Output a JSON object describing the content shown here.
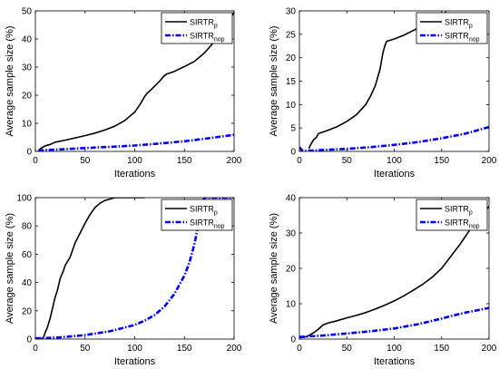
{
  "chart_data": [
    {
      "type": "line",
      "xlabel": "Iterations",
      "ylabel": "Average sample size (%)",
      "xlim": [
        0,
        200
      ],
      "ylim": [
        0,
        50
      ],
      "xticks": [
        0,
        50,
        100,
        150,
        200
      ],
      "yticks": [
        0,
        10,
        20,
        30,
        40,
        50
      ],
      "grid": false,
      "legend": "top-right",
      "series": [
        {
          "name": "SIRTR",
          "sub": "p",
          "color": "#000000",
          "style": "solid",
          "x": [
            3,
            5,
            8,
            10,
            15,
            20,
            30,
            40,
            50,
            60,
            70,
            80,
            90,
            100,
            105,
            110,
            112,
            118,
            125,
            130,
            132,
            140,
            150,
            160,
            170,
            180,
            190,
            200
          ],
          "y": [
            0,
            1,
            1.6,
            2,
            2.5,
            3.3,
            4,
            4.8,
            5.6,
            6.5,
            7.6,
            9,
            11,
            14,
            16.5,
            19.5,
            20.5,
            22.5,
            25,
            27,
            27.5,
            28.5,
            30.2,
            32,
            35,
            39,
            44,
            49.5
          ]
        },
        {
          "name": "SIRTR",
          "sub": "nop",
          "color": "#0000ff",
          "style": "dashdot",
          "x": [
            3,
            10,
            25,
            50,
            75,
            100,
            125,
            150,
            175,
            200
          ],
          "y": [
            0.3,
            0.5,
            0.7,
            1.2,
            1.6,
            2.1,
            2.8,
            3.6,
            4.7,
            5.9
          ]
        }
      ]
    },
    {
      "type": "line",
      "xlabel": "Iterations",
      "ylabel": "Average sample size (%)",
      "xlim": [
        0,
        200
      ],
      "ylim": [
        0,
        30
      ],
      "xticks": [
        0,
        50,
        100,
        150,
        200
      ],
      "yticks": [
        0,
        5,
        10,
        15,
        20,
        25,
        30
      ],
      "grid": false,
      "legend": "top-right",
      "series": [
        {
          "name": "SIRTR",
          "sub": "p",
          "color": "#000000",
          "style": "solid",
          "x": [
            10,
            12,
            15,
            18,
            20,
            30,
            40,
            50,
            60,
            70,
            75,
            80,
            85,
            88,
            90,
            92,
            95,
            100,
            110,
            120,
            130,
            140,
            150,
            155
          ],
          "y": [
            0.6,
            1.5,
            2.5,
            3,
            3.8,
            4.5,
            5.3,
            6.4,
            7.8,
            10,
            11.8,
            14,
            17.5,
            21,
            22.5,
            23.5,
            23.7,
            24,
            24.8,
            25.8,
            26.8,
            27.8,
            29,
            29.8
          ]
        },
        {
          "name": "SIRTR",
          "sub": "nop",
          "color": "#0000ff",
          "style": "dashdot",
          "x": [
            0,
            3,
            6,
            10,
            25,
            50,
            75,
            100,
            125,
            150,
            175,
            200
          ],
          "y": [
            0.9,
            0.2,
            0.1,
            0.15,
            0.3,
            0.55,
            0.9,
            1.4,
            2.0,
            2.8,
            3.8,
            5.2
          ]
        }
      ]
    },
    {
      "type": "line",
      "xlabel": "Iterations",
      "ylabel": "Average sample size (%)",
      "xlim": [
        0,
        200
      ],
      "ylim": [
        0,
        100
      ],
      "xticks": [
        0,
        50,
        100,
        150,
        200
      ],
      "yticks": [
        0,
        20,
        40,
        60,
        80,
        100
      ],
      "grid": false,
      "legend": "top-right",
      "series": [
        {
          "name": "SIRTR",
          "sub": "p",
          "color": "#000000",
          "style": "solid",
          "x": [
            5,
            8,
            10,
            12,
            15,
            18,
            20,
            22,
            25,
            28,
            30,
            35,
            40,
            45,
            50,
            55,
            60,
            65,
            70,
            75,
            80,
            90,
            100,
            110
          ],
          "y": [
            0,
            1,
            5,
            8,
            15,
            24,
            30,
            34,
            43,
            48,
            52,
            58,
            68,
            75,
            82,
            88,
            93,
            96,
            98,
            99,
            100,
            100,
            100,
            100
          ]
        },
        {
          "name": "SIRTR",
          "sub": "nop",
          "color": "#0000ff",
          "style": "dashdot",
          "x": [
            0,
            25,
            50,
            75,
            100,
            110,
            120,
            130,
            140,
            150,
            155,
            160,
            165,
            168,
            170,
            175,
            185,
            200
          ],
          "y": [
            0.5,
            1.2,
            2.8,
            5.5,
            10,
            13,
            17,
            23,
            32,
            45,
            54,
            67,
            84,
            95,
            100,
            100,
            100,
            100
          ]
        }
      ]
    },
    {
      "type": "line",
      "xlabel": "Iterations",
      "ylabel": "Average sample size (%)",
      "xlim": [
        0,
        200
      ],
      "ylim": [
        0,
        40
      ],
      "xticks": [
        0,
        50,
        100,
        150,
        200
      ],
      "yticks": [
        0,
        10,
        20,
        30,
        40
      ],
      "grid": false,
      "legend": "top-right",
      "series": [
        {
          "name": "SIRTR",
          "sub": "p",
          "color": "#000000",
          "style": "solid",
          "x": [
            0,
            5,
            10,
            15,
            20,
            25,
            30,
            40,
            50,
            60,
            70,
            80,
            90,
            100,
            110,
            120,
            130,
            140,
            150,
            160,
            170,
            180,
            190,
            200
          ],
          "y": [
            0.5,
            0.5,
            1,
            1.8,
            2.8,
            4,
            4.5,
            5.2,
            6,
            6.7,
            7.5,
            8.5,
            9.6,
            10.8,
            12.2,
            13.8,
            15.5,
            17.5,
            20,
            23.5,
            27,
            31,
            34.5,
            37.5
          ]
        },
        {
          "name": "SIRTR",
          "sub": "nop",
          "color": "#0000ff",
          "style": "dashdot",
          "x": [
            0,
            25,
            50,
            75,
            100,
            125,
            150,
            160,
            175,
            200
          ],
          "y": [
            0.6,
            1.0,
            1.6,
            2.2,
            3.0,
            4.2,
            5.8,
            6.5,
            7.5,
            8.8
          ]
        }
      ]
    }
  ]
}
